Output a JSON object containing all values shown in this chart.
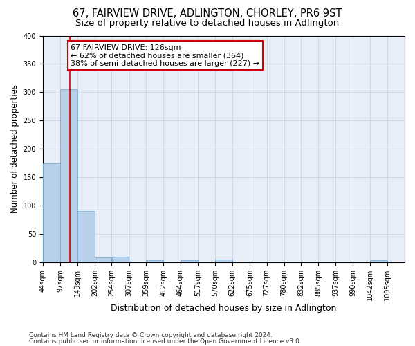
{
  "title1": "67, FAIRVIEW DRIVE, ADLINGTON, CHORLEY, PR6 9ST",
  "title2": "Size of property relative to detached houses in Adlington",
  "xlabel": "Distribution of detached houses by size in Adlington",
  "ylabel": "Number of detached properties",
  "footer1": "Contains HM Land Registry data © Crown copyright and database right 2024.",
  "footer2": "Contains public sector information licensed under the Open Government Licence v3.0.",
  "bin_labels": [
    "44sqm",
    "97sqm",
    "149sqm",
    "202sqm",
    "254sqm",
    "307sqm",
    "359sqm",
    "412sqm",
    "464sqm",
    "517sqm",
    "570sqm",
    "622sqm",
    "675sqm",
    "727sqm",
    "780sqm",
    "832sqm",
    "885sqm",
    "937sqm",
    "990sqm",
    "1042sqm",
    "1095sqm"
  ],
  "bin_edges": [
    44,
    97,
    149,
    202,
    254,
    307,
    359,
    412,
    464,
    517,
    570,
    622,
    675,
    727,
    780,
    832,
    885,
    937,
    990,
    1042,
    1095,
    1148
  ],
  "bar_values": [
    175,
    305,
    90,
    8,
    9,
    0,
    3,
    0,
    4,
    0,
    5,
    0,
    0,
    0,
    0,
    0,
    0,
    0,
    0,
    3,
    0
  ],
  "bar_color": "#b8d0ea",
  "bar_edge_color": "#7aafd4",
  "grid_color": "#c8d4e8",
  "bg_color": "#e8eef8",
  "property_line_x": 126,
  "annotation_text_line1": "67 FAIRVIEW DRIVE: 126sqm",
  "annotation_text_line2": "← 62% of detached houses are smaller (364)",
  "annotation_text_line3": "38% of semi-detached houses are larger (227) →",
  "annotation_box_color": "#ffffff",
  "annotation_box_edge_color": "#cc0000",
  "annotation_text_color": "#000000",
  "vline_color": "#cc0000",
  "ylim": [
    0,
    400
  ],
  "yticks": [
    0,
    50,
    100,
    150,
    200,
    250,
    300,
    350,
    400
  ],
  "title1_fontsize": 10.5,
  "title2_fontsize": 9.5,
  "ylabel_fontsize": 8.5,
  "xlabel_fontsize": 9,
  "tick_fontsize": 7,
  "annotation_fontsize": 8,
  "footer_fontsize": 6.5
}
